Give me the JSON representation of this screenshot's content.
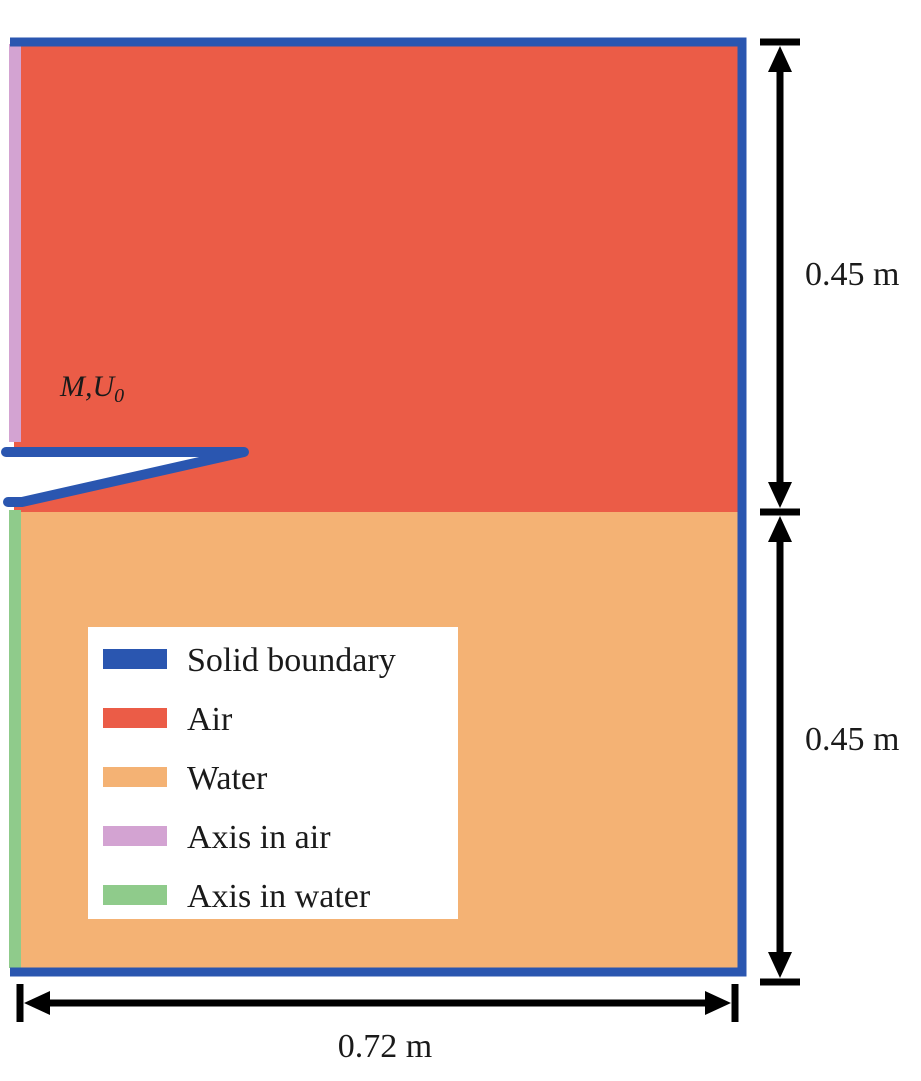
{
  "regions": {
    "air": {
      "name": "Air",
      "color": "#EB5C47"
    },
    "water": {
      "name": "Water",
      "color": "#F4B274"
    }
  },
  "boundary": {
    "color": "#2A56B0"
  },
  "axis_colors": {
    "air": "#D3A3D2",
    "water": "#8FCB8B"
  },
  "labels": {
    "body_symbol": "M,U",
    "body_subscript": "0"
  },
  "dimensions": {
    "upper_height": "0.45 m",
    "lower_height": "0.45 m",
    "width": "0.72 m"
  },
  "legend": {
    "items": [
      {
        "label": "Solid boundary",
        "color": "#2A56B0"
      },
      {
        "label": "Air",
        "color": "#EB5C47"
      },
      {
        "label": "Water",
        "color": "#F4B274"
      },
      {
        "label": "Axis in air",
        "color": "#D3A3D2"
      },
      {
        "label": "Axis in water",
        "color": "#8FCB8B"
      }
    ]
  }
}
